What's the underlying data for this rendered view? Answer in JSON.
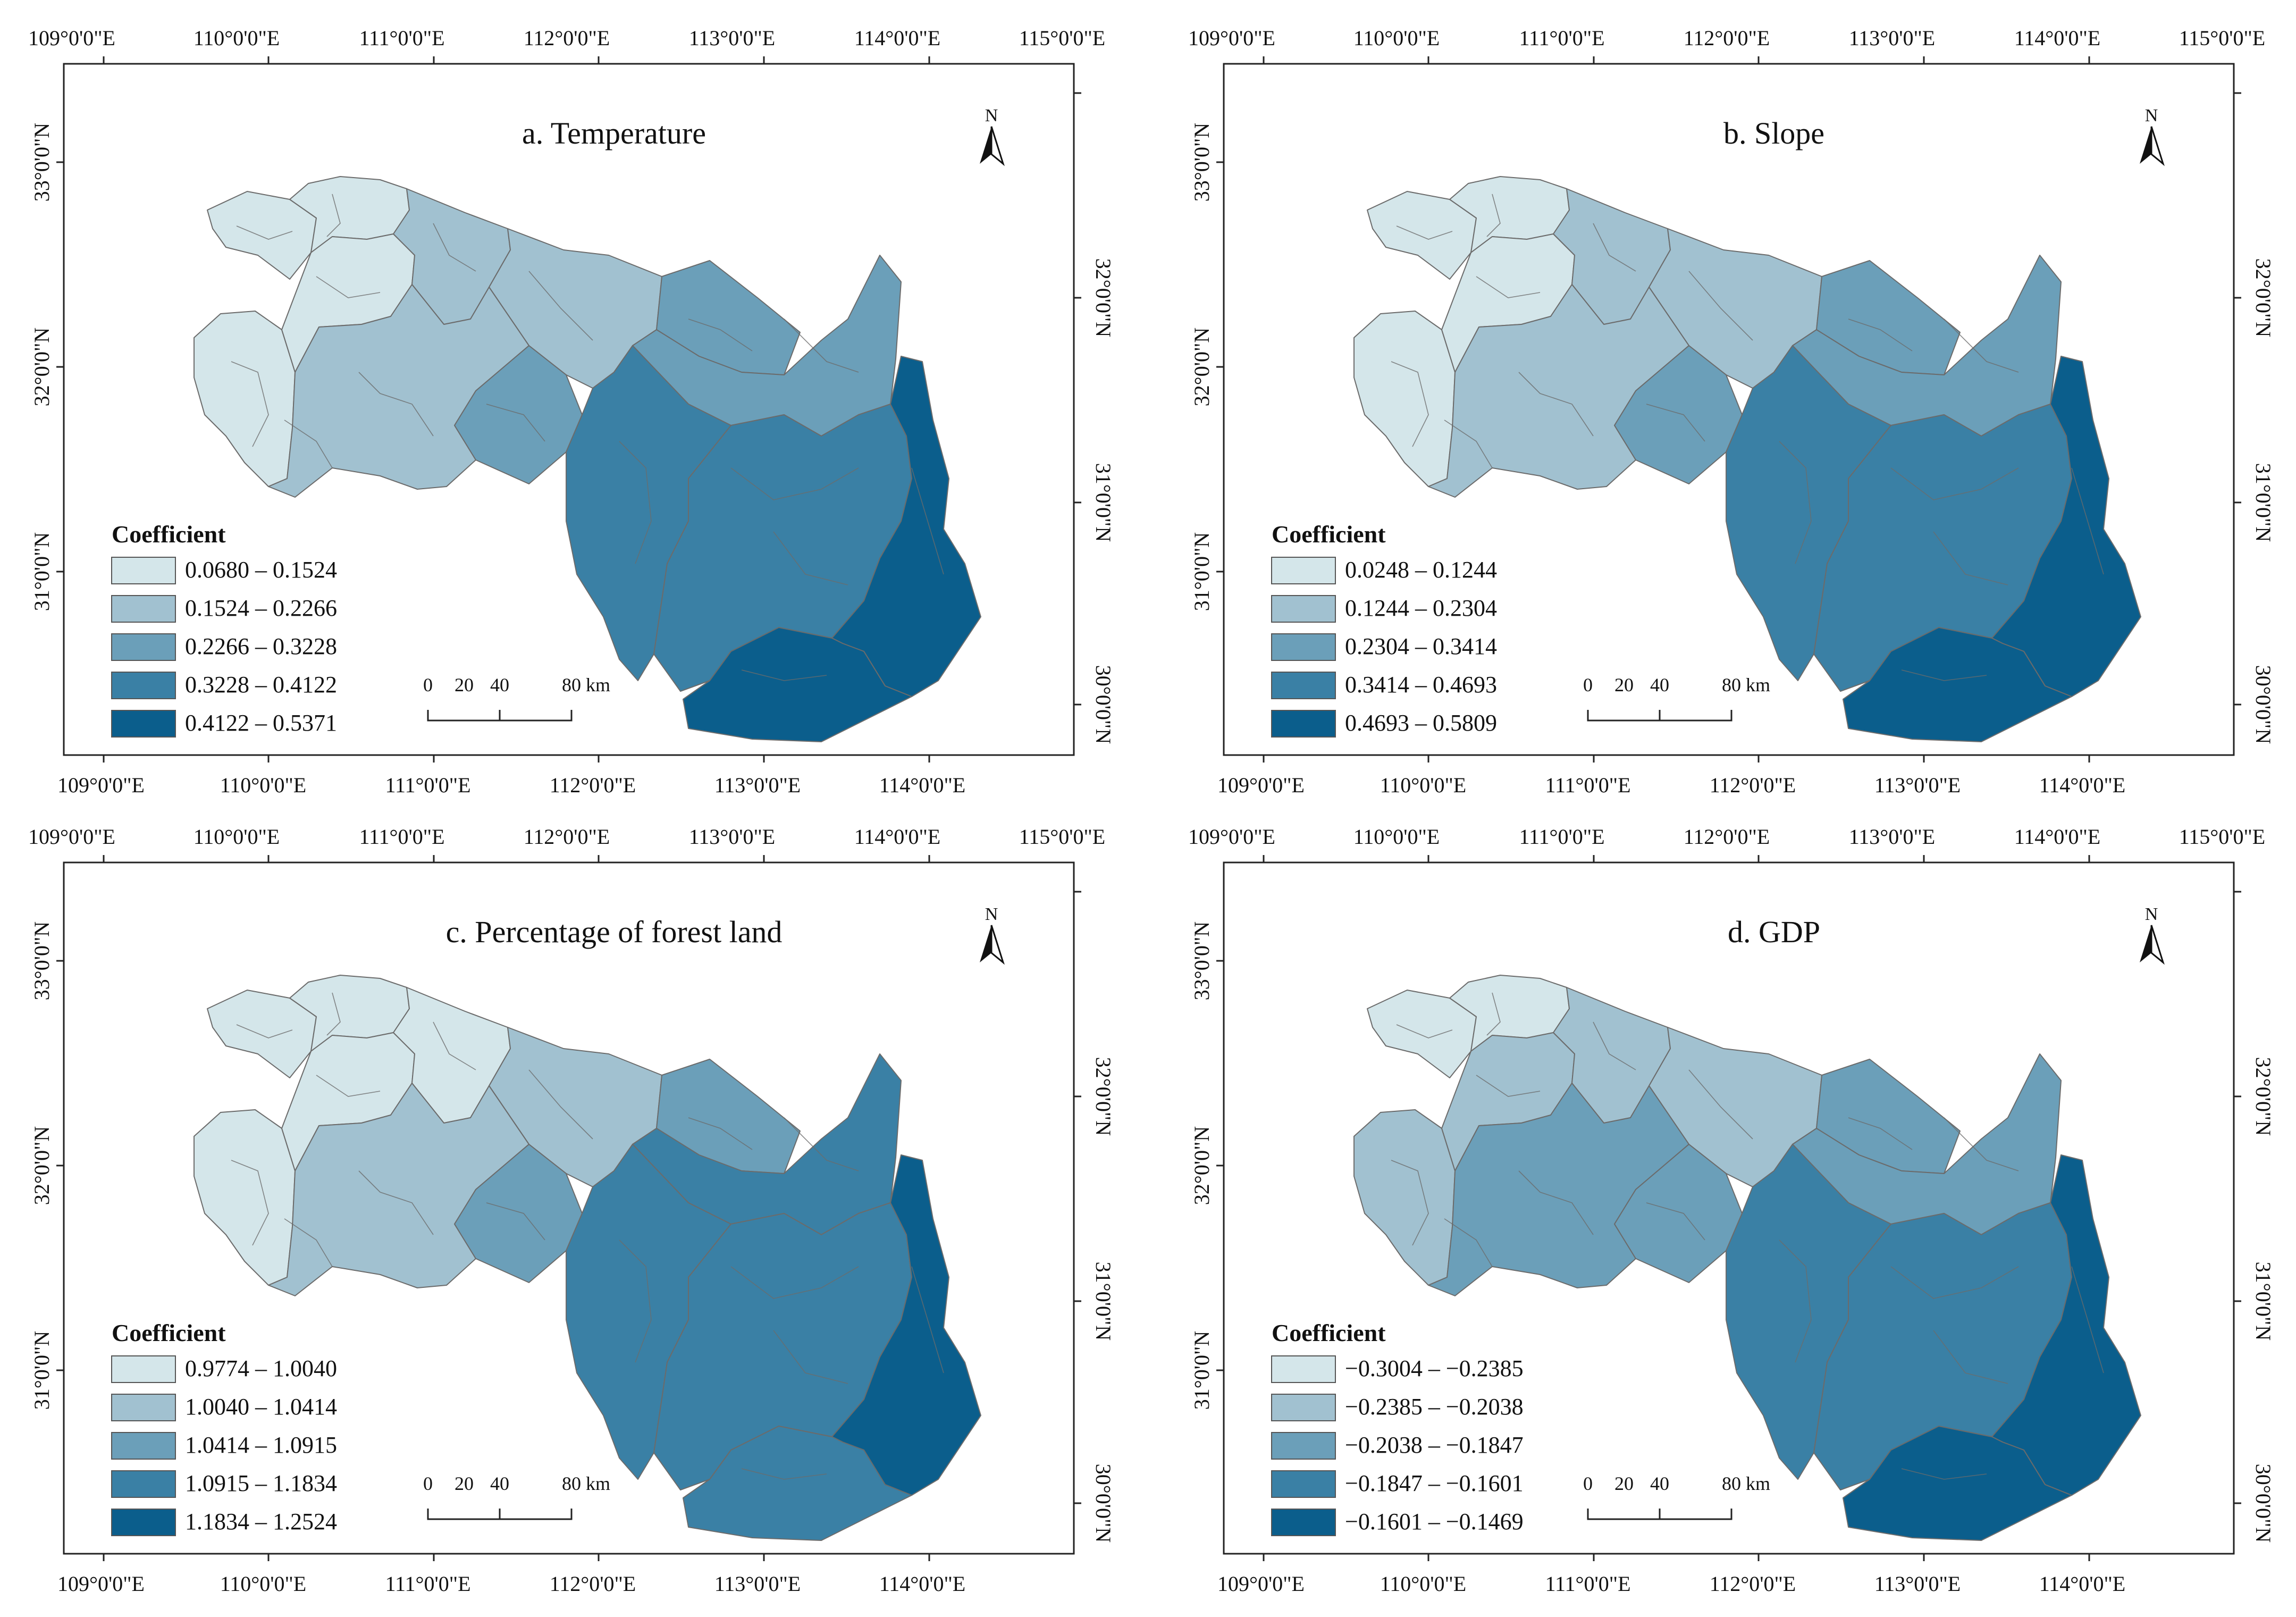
{
  "figure": {
    "coefficient_title": "Coefficient",
    "scale_labels": [
      "0",
      "20",
      "40",
      "80 km"
    ],
    "north_label": "N",
    "top_lon_labels": [
      "109°0'0\"E",
      "110°0'0\"E",
      "111°0'0\"E",
      "112°0'0\"E",
      "113°0'0\"E",
      "114°0'0\"E",
      "115°0'0\"E"
    ],
    "bottom_lon_labels": [
      "109°0'0\"E",
      "110°0'0\"E",
      "111°0'0\"E",
      "112°0'0\"E",
      "113°0'0\"E",
      "114°0'0\"E"
    ],
    "left_lat_labels": [
      "33°0'0\"N",
      "32°0'0\"N",
      "31°0'0\"N"
    ],
    "right_lat_labels": [
      "32°0'0\"N",
      "31°0'0\"N",
      "30°0'0\"N"
    ],
    "legend_colors": [
      "#d4e6ea",
      "#a1c1d0",
      "#6b9fb9",
      "#3a80a5",
      "#0b5e8c"
    ],
    "border_color": "#6b6b6b"
  },
  "panels": [
    {
      "title": "a. Temperature",
      "legend": [
        "0.0680 – 0.1524",
        "0.1524 – 0.2266",
        "0.2266 – 0.3228",
        "0.3228 – 0.4122",
        "0.4122 – 0.5371"
      ],
      "region_classes": [
        1,
        1,
        1,
        1,
        2,
        2,
        2,
        3,
        3,
        3,
        4,
        4,
        5,
        5
      ]
    },
    {
      "title": "b. Slope",
      "legend": [
        "0.0248 – 0.1244",
        "0.1244 – 0.2304",
        "0.2304 – 0.3414",
        "0.3414 – 0.4693",
        "0.4693 – 0.5809"
      ],
      "region_classes": [
        1,
        1,
        1,
        1,
        2,
        2,
        2,
        3,
        3,
        3,
        4,
        4,
        5,
        5
      ]
    },
    {
      "title": "c. Percentage of forest land",
      "legend": [
        "0.9774 – 1.0040",
        "1.0040 – 1.0414",
        "1.0414 – 1.0915",
        "1.0915 – 1.1834",
        "1.1834 – 1.2524"
      ],
      "region_classes": [
        1,
        1,
        1,
        1,
        1,
        2,
        2,
        3,
        3,
        4,
        4,
        4,
        5,
        4
      ]
    },
    {
      "title": "d. GDP",
      "legend": [
        "−0.3004 – −0.2385",
        "−0.2385 – −0.2038",
        "−0.2038 – −0.1847",
        "−0.1847 – −0.1601",
        "−0.1601 – −0.1469"
      ],
      "region_classes": [
        1,
        1,
        2,
        2,
        2,
        2,
        3,
        3,
        3,
        3,
        4,
        4,
        5,
        5
      ]
    }
  ]
}
